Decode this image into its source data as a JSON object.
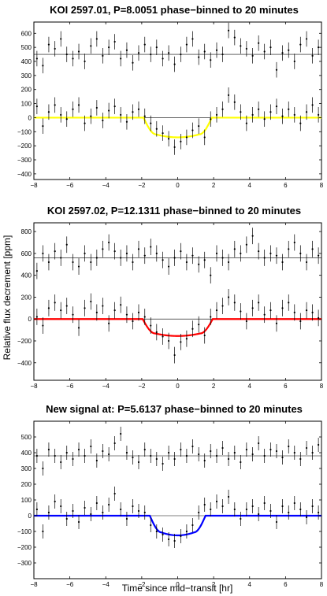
{
  "figure": {
    "ylabel": "Relative flux decrement [ppm]",
    "xlabel": "Time since mid−transit [hr]"
  },
  "chart_data": [
    {
      "type": "scatter",
      "title": "KOI 2597.01, P=8.0051 phase−binned to 20 minutes",
      "xlim": [
        -8,
        8
      ],
      "ylim": [
        -440,
        680
      ],
      "xticks": [
        -8,
        -6,
        -4,
        -2,
        0,
        2,
        4,
        6,
        8
      ],
      "yticks": [
        -400,
        -300,
        -200,
        -100,
        0,
        100,
        200,
        300,
        400,
        500,
        600
      ],
      "model_color": "#ffff00",
      "model": {
        "depth": 140,
        "t_edge": 1.9,
        "t_flat": 1.2
      },
      "upper_offset": 450,
      "lower_err": 55,
      "upper_err": 55,
      "x": [
        -7.83,
        -7.5,
        -7.17,
        -6.83,
        -6.5,
        -6.17,
        -5.83,
        -5.5,
        -5.17,
        -4.83,
        -4.5,
        -4.17,
        -3.83,
        -3.5,
        -3.17,
        -2.83,
        -2.5,
        -2.17,
        -1.83,
        -1.5,
        -1.17,
        -0.83,
        -0.5,
        -0.17,
        0.17,
        0.5,
        0.83,
        1.17,
        1.5,
        1.83,
        2.17,
        2.5,
        2.83,
        3.17,
        3.5,
        3.83,
        4.17,
        4.5,
        4.83,
        5.17,
        5.5,
        5.83,
        6.17,
        6.5,
        6.83,
        7.17,
        7.5,
        7.83
      ],
      "lower_y": [
        80,
        -60,
        40,
        90,
        20,
        -10,
        60,
        90,
        -40,
        10,
        70,
        -20,
        50,
        80,
        20,
        -30,
        40,
        60,
        10,
        -40,
        -80,
        -110,
        -150,
        -210,
        -170,
        -140,
        -90,
        -60,
        -140,
        -10,
        20,
        60,
        160,
        110,
        40,
        -40,
        20,
        60,
        -10,
        40,
        80,
        10,
        60,
        20,
        -40,
        40,
        90,
        20
      ],
      "upper_y": [
        420,
        370,
        520,
        490,
        560,
        450,
        420,
        470,
        400,
        510,
        560,
        440,
        500,
        540,
        420,
        480,
        390,
        460,
        520,
        450,
        500,
        420,
        460,
        380,
        450,
        520,
        560,
        430,
        470,
        410,
        480,
        450,
        620,
        570,
        510,
        490,
        440,
        530,
        470,
        500,
        340,
        460,
        480,
        400,
        520,
        560,
        440,
        500
      ]
    },
    {
      "type": "scatter",
      "title": "KOI 2597.02, P=12.1311 phase−binned to 20 minutes",
      "xlim": [
        -8,
        8
      ],
      "ylim": [
        -560,
        880
      ],
      "xticks": [
        -8,
        -6,
        -4,
        -2,
        0,
        2,
        4,
        6,
        8
      ],
      "yticks": [
        -400,
        -200,
        0,
        200,
        400,
        600,
        800
      ],
      "model_color": "#ff0000",
      "model": {
        "depth": 155,
        "t_edge": 1.95,
        "t_flat": 1.25
      },
      "upper_offset": 560,
      "lower_err": 75,
      "upper_err": 75,
      "x": [
        -7.83,
        -7.5,
        -7.17,
        -6.83,
        -6.5,
        -6.17,
        -5.83,
        -5.5,
        -5.17,
        -4.83,
        -4.5,
        -4.17,
        -3.83,
        -3.5,
        -3.17,
        -2.83,
        -2.5,
        -2.17,
        -1.83,
        -1.5,
        -1.17,
        -0.83,
        -0.5,
        -0.17,
        0.17,
        0.5,
        0.83,
        1.17,
        1.5,
        1.83,
        2.17,
        2.5,
        2.83,
        3.17,
        3.5,
        3.83,
        4.17,
        4.5,
        4.83,
        5.17,
        5.5,
        5.83,
        6.17,
        6.5,
        6.83,
        7.17,
        7.5,
        7.83
      ],
      "lower_y": [
        20,
        -60,
        100,
        150,
        80,
        120,
        40,
        -80,
        100,
        160,
        60,
        120,
        -40,
        80,
        130,
        40,
        -20,
        60,
        20,
        -60,
        -120,
        -160,
        -200,
        -330,
        -210,
        -180,
        -90,
        -50,
        -150,
        20,
        80,
        120,
        200,
        150,
        70,
        -20,
        100,
        150,
        40,
        80,
        -40,
        100,
        150,
        60,
        -20,
        80,
        60,
        10
      ],
      "upper_y": [
        440,
        600,
        520,
        620,
        560,
        680,
        520,
        480,
        600,
        520,
        560,
        640,
        700,
        620,
        560,
        600,
        520,
        640,
        580,
        660,
        600,
        540,
        480,
        560,
        620,
        520,
        580,
        500,
        540,
        400,
        600,
        560,
        520,
        640,
        600,
        680,
        760,
        620,
        560,
        600,
        580,
        520,
        640,
        700,
        600,
        520,
        640,
        580
      ]
    },
    {
      "type": "scatter",
      "title": "New signal at: P=5.6137 phase−binned to 20 minutes",
      "xlim": [
        -8,
        8
      ],
      "ylim": [
        -400,
        600
      ],
      "xticks": [
        -8,
        -6,
        -4,
        -2,
        0,
        2,
        4,
        6,
        8
      ],
      "yticks": [
        -300,
        -200,
        -100,
        0,
        100,
        200,
        300,
        400,
        500
      ],
      "model_color": "#0000ff",
      "model": {
        "depth": 125,
        "t_edge": 1.55,
        "t_flat": 0.9
      },
      "upper_offset": 380,
      "lower_err": 45,
      "upper_err": 45,
      "x": [
        -7.83,
        -7.5,
        -7.17,
        -6.83,
        -6.5,
        -6.17,
        -5.83,
        -5.5,
        -5.17,
        -4.83,
        -4.5,
        -4.17,
        -3.83,
        -3.5,
        -3.17,
        -2.83,
        -2.5,
        -2.17,
        -1.83,
        -1.5,
        -1.17,
        -0.83,
        -0.5,
        -0.17,
        0.17,
        0.5,
        0.83,
        1.17,
        1.5,
        1.83,
        2.17,
        2.5,
        2.83,
        3.17,
        3.5,
        3.83,
        4.17,
        4.5,
        4.83,
        5.17,
        5.5,
        5.83,
        6.17,
        6.5,
        6.83,
        7.17,
        7.5,
        7.83
      ],
      "lower_y": [
        40,
        -100,
        20,
        90,
        60,
        -20,
        30,
        -40,
        50,
        10,
        80,
        20,
        70,
        140,
        40,
        -20,
        60,
        30,
        20,
        -60,
        -100,
        -120,
        -150,
        -160,
        -130,
        -100,
        -60,
        20,
        70,
        40,
        90,
        60,
        120,
        40,
        -20,
        40,
        60,
        10,
        80,
        30,
        -40,
        60,
        20,
        80,
        40,
        -10,
        60,
        20
      ],
      "upper_y": [
        380,
        300,
        420,
        380,
        340,
        400,
        360,
        420,
        380,
        440,
        350,
        410,
        390,
        460,
        520,
        400,
        370,
        340,
        420,
        380,
        360,
        330,
        400,
        360,
        420,
        380,
        440,
        390,
        350,
        410,
        380,
        430,
        360,
        400,
        340,
        420,
        390,
        460,
        380,
        420,
        410,
        370,
        440,
        400,
        360,
        430,
        400,
        450
      ]
    }
  ]
}
